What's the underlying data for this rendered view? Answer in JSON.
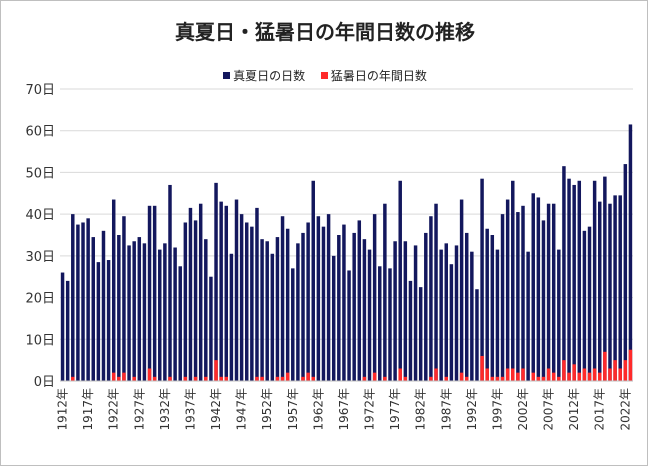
{
  "colors": {
    "midsummer": "#13175d",
    "extreme": "#ff2a2a",
    "grid": "#d9d9d9"
  },
  "chart_data": {
    "type": "bar",
    "title": "真夏日・猛暑日の年間日数の推移",
    "stacking": "overlaid",
    "ylim": [
      0,
      70
    ],
    "yticks": [
      "0日",
      "10日",
      "20日",
      "30日",
      "40日",
      "50日",
      "60日",
      "70日"
    ],
    "ytick_values": [
      0,
      10,
      20,
      30,
      40,
      50,
      60,
      70
    ],
    "xtick_labels": [
      "1912年",
      "1917年",
      "1922年",
      "1927年",
      "1932年",
      "1937年",
      "1942年",
      "1947年",
      "1952年",
      "1957年",
      "1962年",
      "1967年",
      "1972年",
      "1977年",
      "1982年",
      "1987年",
      "1992年",
      "1997年",
      "2002年",
      "2007年",
      "2012年",
      "2017年",
      "2022年"
    ],
    "xtick_years": [
      1912,
      1917,
      1922,
      1927,
      1932,
      1937,
      1942,
      1947,
      1952,
      1957,
      1962,
      1967,
      1972,
      1977,
      1982,
      1987,
      1992,
      1997,
      2002,
      2007,
      2012,
      2017,
      2022
    ],
    "legend_position": "top-center",
    "grid": true,
    "x_start": 1912,
    "x_end": 2023,
    "series": [
      {
        "name": "真夏日の日数",
        "values": [
          26,
          24,
          40,
          37.5,
          38,
          39,
          34.5,
          28.5,
          36,
          29,
          43.5,
          35,
          39.5,
          32.5,
          33.5,
          34.5,
          33,
          42,
          42,
          31.5,
          33,
          47,
          32,
          27.5,
          38,
          41.5,
          38.5,
          42.5,
          34,
          25,
          47.5,
          43,
          42,
          30.5,
          43.5,
          40,
          38,
          37,
          41.5,
          34,
          33.5,
          30.5,
          34.5,
          39.5,
          36.5,
          27,
          33,
          35.5,
          38,
          48,
          39.5,
          37,
          40,
          30,
          35,
          37.5,
          26.5,
          35.5,
          38.5,
          34,
          31.5,
          40,
          27.5,
          42.5,
          27,
          33.5,
          48,
          33.5,
          24,
          32.5,
          22.5,
          35.5,
          39.5,
          42.5,
          31.5,
          33,
          28,
          32.5,
          43.5,
          35.5,
          31,
          22,
          48.5,
          36.5,
          35,
          31.5,
          40,
          43.5,
          48,
          40.5,
          42,
          31,
          45,
          44,
          38.5,
          42.5,
          42.5,
          31.5,
          51.5,
          48.5,
          47,
          48,
          36,
          37,
          48,
          43,
          49,
          42.5,
          44.5,
          44.5,
          52,
          61.5
        ]
      },
      {
        "name": "猛暑日の年間日数",
        "values": [
          0,
          0,
          1,
          0,
          0,
          0,
          0,
          0,
          0,
          0,
          2,
          1,
          2,
          0,
          1,
          0,
          0,
          3,
          1,
          0,
          0,
          1,
          0,
          0,
          1,
          0,
          1,
          0,
          1,
          0,
          5,
          1,
          1,
          0,
          0,
          0,
          0,
          0,
          1,
          1,
          0,
          0,
          1,
          1,
          2,
          0,
          0,
          1,
          2,
          1,
          0,
          0,
          0,
          0,
          0,
          0,
          0,
          0,
          0,
          1,
          0,
          2,
          0,
          1,
          0,
          0,
          3,
          1,
          0,
          0,
          0,
          0,
          1,
          3,
          0,
          1,
          0,
          0,
          2,
          1,
          0,
          0,
          6,
          3,
          1,
          1,
          1,
          3,
          3,
          2,
          3,
          0,
          2,
          1,
          1,
          3,
          2,
          1,
          5,
          2,
          4,
          2,
          3,
          2,
          3,
          2,
          7,
          3,
          5,
          3,
          5,
          7.5
        ]
      }
    ]
  }
}
